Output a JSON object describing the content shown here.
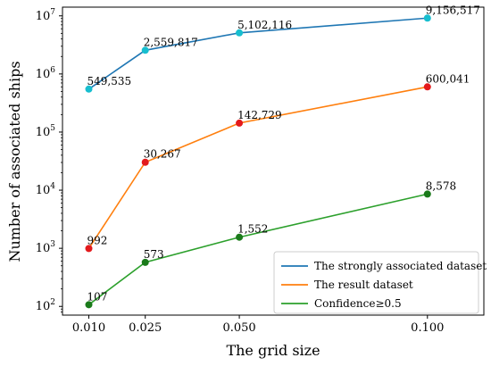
{
  "chart_data": {
    "type": "line",
    "xlabel": "The grid size",
    "ylabel": "Number of associated ships",
    "y_scale": "log",
    "x": [
      0.01,
      0.025,
      0.05,
      0.1
    ],
    "x_tick_labels": [
      "0.010",
      "0.025",
      "0.050",
      "0.100"
    ],
    "xlim": [
      0.003,
      0.115
    ],
    "ylim_log10": [
      1.85,
      7.15
    ],
    "y_tick_exponents": [
      2,
      3,
      4,
      5,
      6,
      7
    ],
    "y_tick_base": "10",
    "grid": false,
    "legend_position": "bottom-right",
    "series": [
      {
        "name": "The strongly associated dataset",
        "values": [
          549535,
          2559817,
          5102116,
          9156517
        ],
        "labels": [
          "549,535",
          "2,559,817",
          "5,102,116",
          "9,156,517"
        ],
        "line_color": "#1f77b4",
        "marker_color": "#17becf"
      },
      {
        "name": "The result dataset",
        "values": [
          992,
          30267,
          142729,
          600041
        ],
        "labels": [
          "992",
          "30,267",
          "142,729",
          "600,041"
        ],
        "line_color": "#ff7f0e",
        "marker_color": "#e31a1c"
      },
      {
        "name": "Confidence≥0.5",
        "values": [
          107,
          573,
          1552,
          8578
        ],
        "labels": [
          "107",
          "573",
          "1,552",
          "8,578"
        ],
        "line_color": "#2ca02c",
        "marker_color": "#1a7a1a"
      }
    ]
  }
}
